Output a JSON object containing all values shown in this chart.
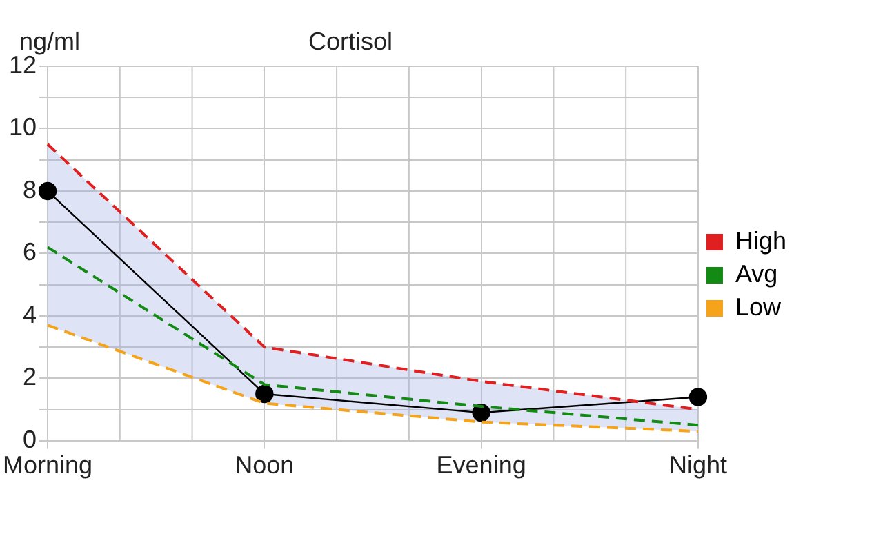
{
  "chart_data": {
    "type": "line",
    "title": "Cortisol",
    "ylabel": "ng/ml",
    "categories": [
      "Morning",
      "Noon",
      "Evening",
      "Night"
    ],
    "series": [
      {
        "name": "High",
        "color": "#e02020",
        "values": [
          9.5,
          3.0,
          1.9,
          1.0
        ],
        "line_style": "dashed",
        "marker": "none"
      },
      {
        "name": "Avg",
        "color": "#138a13",
        "values": [
          6.2,
          1.8,
          1.1,
          0.5
        ],
        "line_style": "dashed",
        "marker": "none"
      },
      {
        "name": "Low",
        "color": "#f5a31a",
        "values": [
          3.7,
          1.2,
          0.6,
          0.3
        ],
        "line_style": "dashed",
        "marker": "none"
      },
      {
        "color": "#000000",
        "values": [
          8.0,
          1.5,
          0.9,
          1.4
        ],
        "line_style": "solid",
        "marker": "circle",
        "lower": [
          3.7,
          1.2,
          0.6,
          0.3
        ],
        "upper": [
          9.5,
          3.0,
          1.9,
          1.0
        ]
      }
    ],
    "ylim": [
      0,
      12
    ],
    "yticks": [
      0,
      {
        "value": 1,
        "label": null
      },
      2,
      {
        "value": 3,
        "label": null
      },
      4,
      {
        "value": 5,
        "label": null
      },
      6,
      {
        "value": 7,
        "label": null
      },
      8,
      {
        "value": 9,
        "label": null
      },
      10,
      {
        "value": 11,
        "label": null
      },
      12
    ],
    "grid": true,
    "legend": "right"
  }
}
